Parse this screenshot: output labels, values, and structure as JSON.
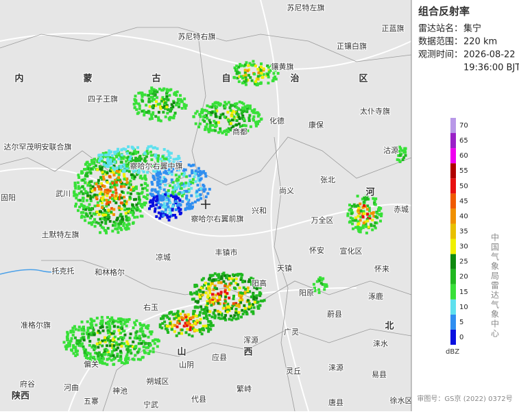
{
  "panel": {
    "title": "组合反射率",
    "rows": [
      {
        "label": "雷达站名：",
        "lines": [
          "集宁"
        ]
      },
      {
        "label": "数据范围：",
        "lines": [
          "220 km"
        ]
      },
      {
        "label": "观测时间：",
        "lines": [
          "2026-08-22",
          "19:36:00 BJT"
        ]
      }
    ]
  },
  "legend": {
    "unit": "dBZ",
    "items": [
      {
        "value": 0,
        "color": "#0a10e0"
      },
      {
        "value": 5,
        "color": "#2f8ef0"
      },
      {
        "value": 10,
        "color": "#5ee0ee"
      },
      {
        "value": 15,
        "color": "#38e038"
      },
      {
        "value": 20,
        "color": "#20b820"
      },
      {
        "value": 25,
        "color": "#0f8a0f"
      },
      {
        "value": 30,
        "color": "#f0f000"
      },
      {
        "value": 35,
        "color": "#e8c000"
      },
      {
        "value": 40,
        "color": "#f09000"
      },
      {
        "value": 45,
        "color": "#f05a00"
      },
      {
        "value": 50,
        "color": "#e81010"
      },
      {
        "value": 55,
        "color": "#b00000"
      },
      {
        "value": 60,
        "color": "#f000f0"
      },
      {
        "value": 65,
        "color": "#9a20c8"
      },
      {
        "value": 70,
        "color": "#b898e8"
      }
    ]
  },
  "credit": "中国气象局雷达气象中心",
  "approval": "审图号：GS京 (2022) 0372号",
  "map": {
    "labels": [
      "苏尼特左旗",
      "正蓝旗",
      "苏尼特右旗",
      "正镶白旗",
      "镶黄旗",
      "内",
      "蒙",
      "古",
      "自",
      "治",
      "区",
      "四子王旗",
      "太仆寺旗",
      "化德",
      "康保",
      "商都",
      "达尔罕茂明安联合旗",
      "沽源",
      "察哈尔右翼中旗",
      "张北",
      "武川",
      "尚义",
      "固阳",
      "河",
      "兴和",
      "万全区",
      "赤城",
      "察哈尔右翼前旗",
      "丰镇市",
      "凉城",
      "土默特左旗",
      "怀安",
      "宣化区",
      "托克托",
      "和林格尔",
      "天镇",
      "怀来",
      "阳原",
      "涿鹿",
      "右玉",
      "阳高",
      "蔚县",
      "准格尔旗",
      "北",
      "广灵",
      "浑源",
      "涞水",
      "山",
      "西",
      "应县",
      "山阴",
      "偏关",
      "灵丘",
      "涞源",
      "易县",
      "河曲",
      "朔城区",
      "府谷",
      "陕西",
      "神池",
      "繁峙",
      "五寨",
      "代县",
      "宁武",
      "唐县",
      "徐水区"
    ]
  }
}
